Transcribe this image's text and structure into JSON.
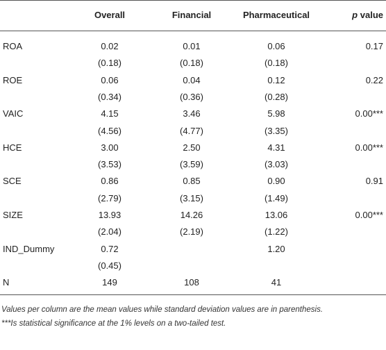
{
  "table": {
    "columns": [
      "Overall",
      "Financial",
      "Pharmaceutical"
    ],
    "p_header": {
      "symbol": "p",
      "text": "value"
    },
    "rows": [
      [
        "ROA",
        "0.02",
        "0.01",
        "0.06",
        "0.17"
      ],
      [
        null,
        "(0.18)",
        "(0.18)",
        "(0.18)",
        null
      ],
      [
        "ROE",
        "0.06",
        "0.04",
        "0.12",
        "0.22"
      ],
      [
        null,
        "(0.34)",
        "(0.36)",
        "(0.28)",
        null
      ],
      [
        "VAIC",
        "4.15",
        "3.46",
        "5.98",
        "0.00***"
      ],
      [
        null,
        "(4.56)",
        "(4.77)",
        "(3.35)",
        null
      ],
      [
        "HCE",
        "3.00",
        "2.50",
        "4.31",
        "0.00***"
      ],
      [
        null,
        "(3.53)",
        "(3.59)",
        "(3.03)",
        null
      ],
      [
        "SCE",
        "0.86",
        "0.85",
        "0.90",
        "0.91"
      ],
      [
        null,
        "(2.79)",
        "(3.15)",
        "(1.49)",
        null
      ],
      [
        "SIZE",
        "13.93",
        "14.26",
        "13.06",
        "0.00***"
      ],
      [
        null,
        "(2.04)",
        "(2.19)",
        "(1.22)",
        null
      ],
      [
        "IND_Dummy",
        "0.72",
        null,
        "1.20",
        null
      ],
      [
        null,
        "(0.45)",
        null,
        null,
        null
      ],
      [
        "N",
        "149",
        "108",
        "41",
        null
      ]
    ],
    "notes": [
      "Values per column are the mean values while standard deviation values are in parenthesis.",
      "***Is statistical significance at the 1% levels on a two-tailed test."
    ]
  }
}
